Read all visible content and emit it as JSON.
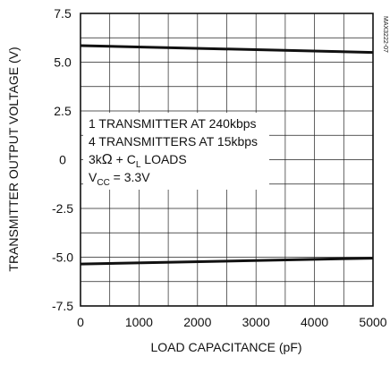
{
  "chart_data": {
    "type": "line",
    "xlabel": "LOAD CAPACITANCE (pF)",
    "ylabel": "TRANSMITTER OUTPUT VOLTAGE (V)",
    "xlim": [
      0,
      5000
    ],
    "ylim": [
      -7.5,
      7.5
    ],
    "x_ticks": [
      "0",
      "1000",
      "2000",
      "3000",
      "4000",
      "5000"
    ],
    "x_tick_values": [
      0,
      1000,
      2000,
      3000,
      4000,
      5000
    ],
    "y_ticks": [
      "7.5",
      "5.0",
      "2.5",
      "0",
      "-2.5",
      "-5.0",
      "-7.5"
    ],
    "y_tick_values": [
      7.5,
      5.0,
      2.5,
      0,
      -2.5,
      -5.0,
      -7.5
    ],
    "grid": true,
    "series": [
      {
        "x": [
          0,
          5000
        ],
        "y": [
          5.85,
          5.5
        ]
      },
      {
        "x": [
          0,
          5000
        ],
        "y": [
          -5.35,
          -5.05
        ]
      }
    ],
    "annotations": [
      "1 TRANSMITTER AT 240kbps",
      "4 TRANSMITTERS AT 15kbps"
    ],
    "annotation_loads": {
      "prefix": "3k",
      "omega": "Ω",
      "mid": " + C",
      "sub": "L",
      "suffix": " LOADS"
    },
    "annotation_vcc": {
      "prefix": "V",
      "sub": "CC",
      "suffix": " = 3.3V"
    },
    "watermark": "MAX3222-07",
    "colors": {
      "line": "#111111",
      "grid": "#222222",
      "background": "#ffffff"
    }
  }
}
